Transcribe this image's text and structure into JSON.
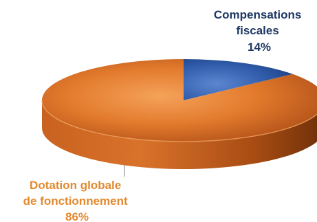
{
  "chart_data": {
    "type": "pie",
    "style": "3d",
    "legend": "none",
    "slices": [
      {
        "label_lines": [
          "Compensations",
          "fiscales"
        ],
        "value": 14,
        "value_label": "14%",
        "color": "#2E5AA8",
        "label_color": "#1F3864"
      },
      {
        "label_lines": [
          "Dotation globale",
          "de fonctionnement"
        ],
        "value": 86,
        "value_label": "86%",
        "color": "#E0782A",
        "label_color": "#E3892F"
      }
    ]
  }
}
